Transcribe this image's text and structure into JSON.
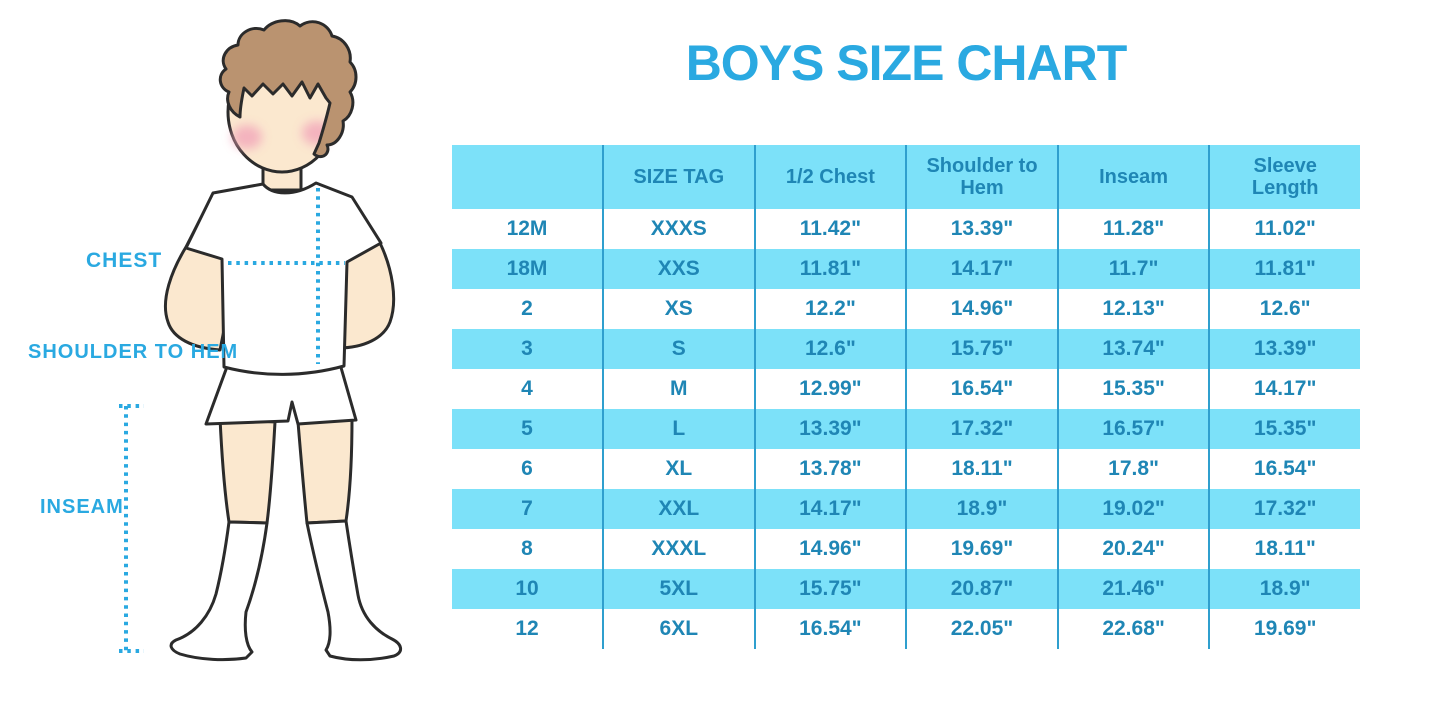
{
  "title": "BOYS SIZE CHART",
  "figure": {
    "description": "cartoon boy in white t-shirt, shorts and knee socks with measurement guides",
    "labels": {
      "chest": "CHEST",
      "shoulder_to_hem": "SHOULDER TO HEM",
      "inseam": "INSEAM"
    }
  },
  "chart_data": {
    "type": "table",
    "title": "BOYS SIZE CHART",
    "columns": [
      "",
      "SIZE TAG",
      "1/2 Chest",
      "Shoulder to Hem",
      "Inseam",
      "Sleeve Length"
    ],
    "rows": [
      [
        "12M",
        "XXXS",
        "11.42\"",
        "13.39\"",
        "11.28\"",
        "11.02\""
      ],
      [
        "18M",
        "XXS",
        "11.81\"",
        "14.17\"",
        "11.7\"",
        "11.81\""
      ],
      [
        "2",
        "XS",
        "12.2\"",
        "14.96\"",
        "12.13\"",
        "12.6\""
      ],
      [
        "3",
        "S",
        "12.6\"",
        "15.75\"",
        "13.74\"",
        "13.39\""
      ],
      [
        "4",
        "M",
        "12.99\"",
        "16.54\"",
        "15.35\"",
        "14.17\""
      ],
      [
        "5",
        "L",
        "13.39\"",
        "17.32\"",
        "16.57\"",
        "15.35\""
      ],
      [
        "6",
        "XL",
        "13.78\"",
        "18.11\"",
        "17.8\"",
        "16.54\""
      ],
      [
        "7",
        "XXL",
        "14.17\"",
        "18.9\"",
        "19.02\"",
        "17.32\""
      ],
      [
        "8",
        "XXXL",
        "14.96\"",
        "19.69\"",
        "20.24\"",
        "18.11\""
      ],
      [
        "10",
        "5XL",
        "15.75\"",
        "20.87\"",
        "21.46\"",
        "18.9\""
      ],
      [
        "12",
        "6XL",
        "16.54\"",
        "22.05\"",
        "22.68\"",
        "19.69\""
      ]
    ],
    "layout": {
      "row_striping": "alternating white and light blue, header light blue",
      "grid": "vertical column separators only, no outer border"
    }
  },
  "colors": {
    "accent": "#2aa9e1",
    "band": "#7ce1f9",
    "grid": "#2f9fce",
    "txt": "#1f86b5",
    "hair": "#ba9370",
    "skin": "#fbe8cf",
    "blush": "#f2a6ba",
    "outline": "#2b2b2b"
  }
}
